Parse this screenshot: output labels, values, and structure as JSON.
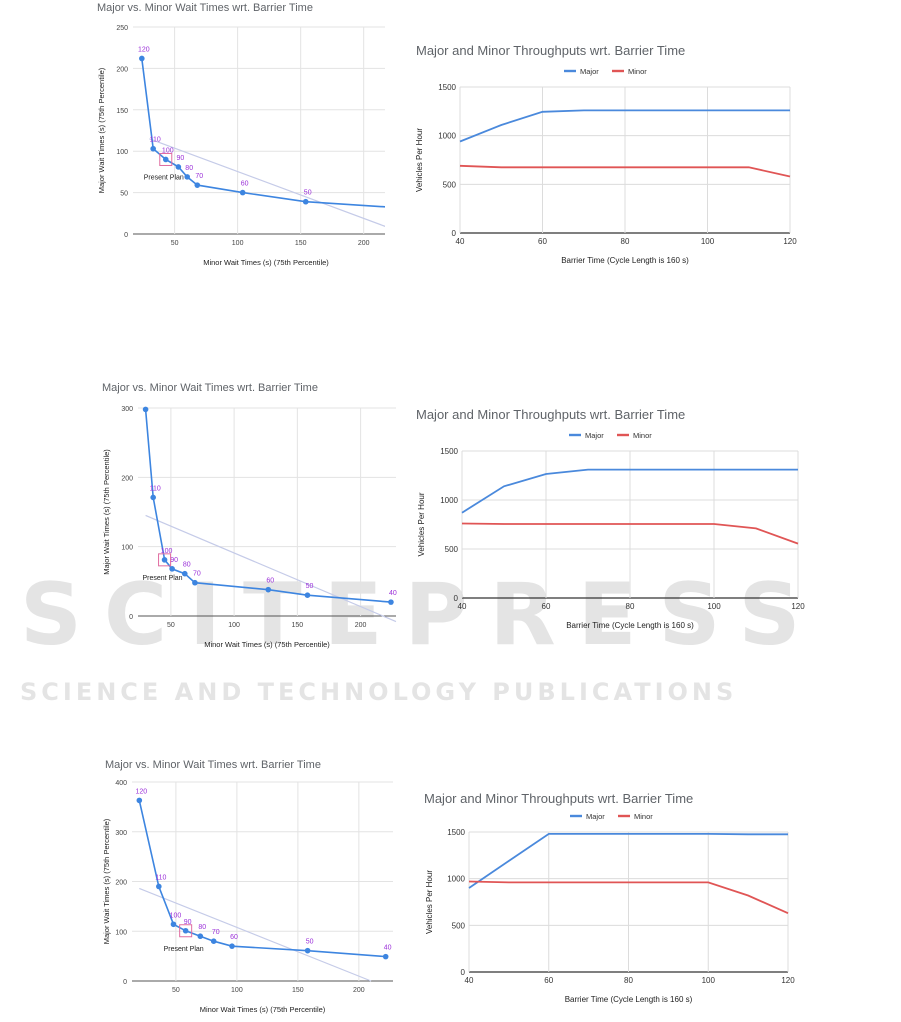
{
  "watermark": {
    "main": "SCITEPRESS",
    "sub": "SCIENCE AND TECHNOLOGY PUBLICATIONS"
  },
  "chart_data": [
    {
      "type": "scatter",
      "title": "Major vs. Minor Wait Times wrt. Barrier Time",
      "xlabel": "Minor Wait Times (s) (75th Percentile)",
      "ylabel": "Major Wait Times (s) (75th Percentile)",
      "xlim": [
        17,
        228
      ],
      "ylim": [
        0,
        250
      ],
      "xticks": [
        50,
        100,
        150,
        200
      ],
      "yticks": [
        0,
        50,
        100,
        150,
        200,
        250
      ],
      "points": [
        {
          "x": 24,
          "y": 212,
          "label": "120"
        },
        {
          "x": 33,
          "y": 103,
          "label": "110"
        },
        {
          "x": 43,
          "y": 90,
          "label": "100"
        },
        {
          "x": 53,
          "y": 81,
          "label": "90"
        },
        {
          "x": 60,
          "y": 69,
          "label": "80"
        },
        {
          "x": 68,
          "y": 59,
          "label": "70"
        },
        {
          "x": 104,
          "y": 50,
          "label": "60"
        },
        {
          "x": 154,
          "y": 39,
          "label": "50"
        },
        {
          "x": 225,
          "y": 32,
          "label": "40"
        }
      ],
      "trendline": [
        [
          30,
          115
        ],
        [
          228,
          3
        ]
      ],
      "present_plan": {
        "x": 43,
        "y": 90,
        "label": "Present Plan"
      }
    },
    {
      "type": "line",
      "title": "Major and Minor Throughputs wrt. Barrier Time",
      "xlabel": "Barrier Time (Cycle Length is 160 s)",
      "ylabel": "Vehicles Per Hour",
      "xlim": [
        40,
        120
      ],
      "ylim": [
        0,
        1500
      ],
      "xticks": [
        40,
        60,
        80,
        100,
        120
      ],
      "yticks": [
        0,
        500,
        1000,
        1500
      ],
      "legend": "top",
      "series": [
        {
          "name": "Major",
          "color": "#4a89dc",
          "points": [
            [
              40,
              940
            ],
            [
              50,
              1110
            ],
            [
              60,
              1245
            ],
            [
              70,
              1260
            ],
            [
              80,
              1260
            ],
            [
              90,
              1260
            ],
            [
              100,
              1260
            ],
            [
              110,
              1260
            ],
            [
              120,
              1260
            ]
          ]
        },
        {
          "name": "Minor",
          "color": "#e05555",
          "points": [
            [
              40,
              690
            ],
            [
              50,
              675
            ],
            [
              60,
              675
            ],
            [
              70,
              675
            ],
            [
              80,
              675
            ],
            [
              90,
              675
            ],
            [
              100,
              675
            ],
            [
              110,
              675
            ],
            [
              120,
              580
            ]
          ]
        }
      ]
    },
    {
      "type": "scatter",
      "title": "Major vs. Minor Wait Times wrt. Barrier Time",
      "xlabel": "Minor Wait Times (s) (75th Percentile)",
      "ylabel": "Major Wait Times (s) (75th Percentile)",
      "xlim": [
        24,
        228
      ],
      "ylim": [
        0,
        300
      ],
      "xticks": [
        50,
        100,
        150,
        200
      ],
      "yticks": [
        0,
        100,
        200,
        300
      ],
      "points": [
        {
          "x": 30,
          "y": 298,
          "label": ""
        },
        {
          "x": 36,
          "y": 171,
          "label": "110"
        },
        {
          "x": 45,
          "y": 81,
          "label": "100"
        },
        {
          "x": 51,
          "y": 68,
          "label": "90"
        },
        {
          "x": 61,
          "y": 61,
          "label": "80"
        },
        {
          "x": 69,
          "y": 48,
          "label": "70"
        },
        {
          "x": 127,
          "y": 38,
          "label": "60"
        },
        {
          "x": 158,
          "y": 30,
          "label": "50"
        },
        {
          "x": 224,
          "y": 20,
          "label": "40"
        }
      ],
      "trendline": [
        [
          30,
          145
        ],
        [
          228,
          -8
        ]
      ],
      "present_plan": {
        "x": 45,
        "y": 81,
        "label": "Present Plan"
      }
    },
    {
      "type": "line",
      "title": "Major and Minor Throughputs wrt. Barrier Time",
      "xlabel": "Barrier Time (Cycle Length is 160 s)",
      "ylabel": "Vehicles Per Hour",
      "xlim": [
        40,
        120
      ],
      "ylim": [
        0,
        1500
      ],
      "xticks": [
        40,
        60,
        80,
        100,
        120
      ],
      "yticks": [
        0,
        500,
        1000,
        1500
      ],
      "legend": "top",
      "series": [
        {
          "name": "Major",
          "color": "#4a89dc",
          "points": [
            [
              40,
              870
            ],
            [
              50,
              1140
            ],
            [
              60,
              1265
            ],
            [
              70,
              1310
            ],
            [
              80,
              1310
            ],
            [
              90,
              1310
            ],
            [
              100,
              1310
            ],
            [
              110,
              1310
            ],
            [
              120,
              1310
            ]
          ]
        },
        {
          "name": "Minor",
          "color": "#e05555",
          "points": [
            [
              40,
              760
            ],
            [
              50,
              755
            ],
            [
              60,
              755
            ],
            [
              70,
              755
            ],
            [
              80,
              755
            ],
            [
              90,
              755
            ],
            [
              100,
              755
            ],
            [
              110,
              710
            ],
            [
              120,
              555
            ]
          ]
        }
      ]
    },
    {
      "type": "scatter",
      "title": "Major vs. Minor Wait Times wrt. Barrier Time",
      "xlabel": "Minor Wait Times (s) (75th Percentile)",
      "ylabel": "Major Wait Times (s) (75th Percentile)",
      "xlim": [
        14,
        228
      ],
      "ylim": [
        0,
        400
      ],
      "xticks": [
        50,
        100,
        150,
        200
      ],
      "yticks": [
        0,
        100,
        200,
        300,
        400
      ],
      "points": [
        {
          "x": 20,
          "y": 363,
          "label": "120"
        },
        {
          "x": 36,
          "y": 190,
          "label": "110"
        },
        {
          "x": 48,
          "y": 114,
          "label": "100"
        },
        {
          "x": 58,
          "y": 101,
          "label": "90"
        },
        {
          "x": 70,
          "y": 90,
          "label": "80"
        },
        {
          "x": 81,
          "y": 80,
          "label": "70"
        },
        {
          "x": 96,
          "y": 70,
          "label": "60"
        },
        {
          "x": 158,
          "y": 61,
          "label": "50"
        },
        {
          "x": 222,
          "y": 49,
          "label": "40"
        }
      ],
      "trendline": [
        [
          20,
          186
        ],
        [
          210,
          0
        ]
      ],
      "present_plan": {
        "x": 58,
        "y": 101,
        "label": "Present Plan"
      }
    },
    {
      "type": "line",
      "title": "Major and Minor Throughputs wrt. Barrier Time",
      "xlabel": "Barrier Time (Cycle Length is 160 s)",
      "ylabel": "Vehicles Per Hour",
      "xlim": [
        40,
        120
      ],
      "ylim": [
        0,
        1500
      ],
      "xticks": [
        40,
        60,
        80,
        100,
        120
      ],
      "yticks": [
        0,
        500,
        1000,
        1500
      ],
      "legend": "top",
      "series": [
        {
          "name": "Major",
          "color": "#4a89dc",
          "points": [
            [
              40,
              900
            ],
            [
              50,
              1190
            ],
            [
              60,
              1480
            ],
            [
              70,
              1480
            ],
            [
              80,
              1480
            ],
            [
              90,
              1480
            ],
            [
              100,
              1480
            ],
            [
              110,
              1475
            ],
            [
              120,
              1475
            ]
          ]
        },
        {
          "name": "Minor",
          "color": "#e05555",
          "points": [
            [
              40,
              970
            ],
            [
              50,
              960
            ],
            [
              60,
              960
            ],
            [
              70,
              960
            ],
            [
              80,
              960
            ],
            [
              90,
              960
            ],
            [
              100,
              960
            ],
            [
              110,
              820
            ],
            [
              120,
              630
            ]
          ]
        }
      ]
    }
  ]
}
